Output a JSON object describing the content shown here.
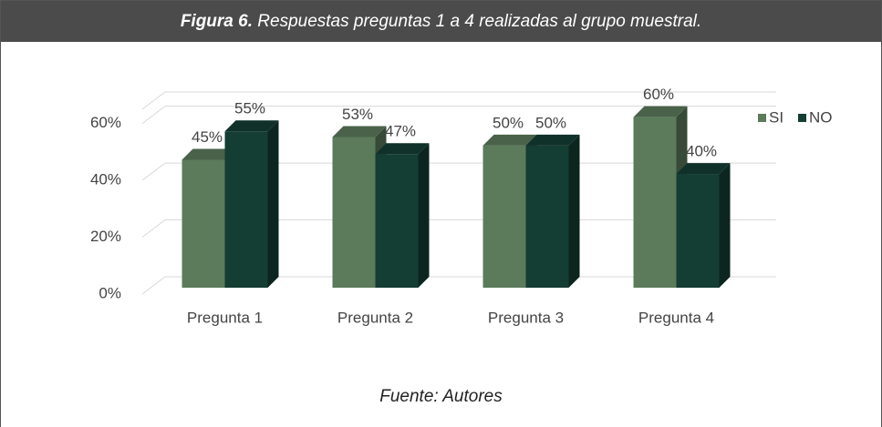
{
  "header": {
    "label": "Figura 6.",
    "title": "Respuestas preguntas 1 a 4 realizadas al grupo muestral."
  },
  "chart_data": {
    "type": "bar",
    "categories": [
      "Pregunta 1",
      "Pregunta 2",
      "Pregunta 3",
      "Pregunta 4"
    ],
    "series": [
      {
        "name": "SI",
        "color": "#5b7b5b",
        "values": [
          45,
          53,
          50,
          60
        ],
        "value_labels": [
          "45%",
          "53%",
          "50%",
          "60%"
        ]
      },
      {
        "name": "NO",
        "color": "#143d33",
        "values": [
          55,
          47,
          50,
          40
        ],
        "value_labels": [
          "55%",
          "47%",
          "50%",
          "40%"
        ]
      }
    ],
    "ylim": [
      0,
      65
    ],
    "yticks": [
      {
        "value": 0,
        "label": "0%"
      },
      {
        "value": 20,
        "label": "20%"
      },
      {
        "value": 40,
        "label": "40%"
      },
      {
        "value": 60,
        "label": "60%"
      }
    ],
    "grid": true,
    "legend": "right"
  },
  "footer": {
    "source": "Fuente: Autores"
  }
}
